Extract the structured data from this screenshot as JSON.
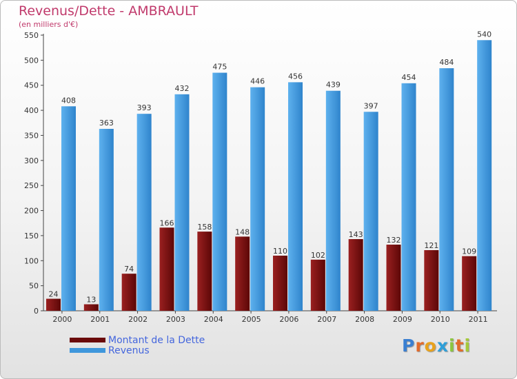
{
  "chart_data": {
    "type": "bar",
    "title": "Revenus/Dette - AMBRAULT",
    "subtitle": "(en milliers d'€)",
    "categories": [
      "2000",
      "2001",
      "2002",
      "2003",
      "2004",
      "2005",
      "2006",
      "2007",
      "2008",
      "2009",
      "2010",
      "2011"
    ],
    "series": [
      {
        "name": "Montant de la Dette",
        "color": "#7a0e0e",
        "values": [
          24,
          13,
          74,
          166,
          158,
          148,
          110,
          102,
          143,
          132,
          121,
          109
        ]
      },
      {
        "name": "Revenus",
        "color": "#3f97dc",
        "values": [
          408,
          363,
          393,
          432,
          475,
          446,
          456,
          439,
          397,
          454,
          484,
          540
        ]
      }
    ],
    "ylim": [
      0,
      550
    ],
    "yticks": [
      0,
      50,
      100,
      150,
      200,
      250,
      300,
      350,
      400,
      450,
      500,
      550
    ],
    "grid": false,
    "legend": "bottom-left"
  },
  "logo": {
    "letters": [
      "P",
      "r",
      "o",
      "x",
      "i",
      "t",
      "i"
    ],
    "colors": [
      "#3a7fd1",
      "#e26b2b",
      "#e8a21c",
      "#2f9fd8",
      "#8cc63f",
      "#e26b2b",
      "#a5c93a"
    ]
  }
}
